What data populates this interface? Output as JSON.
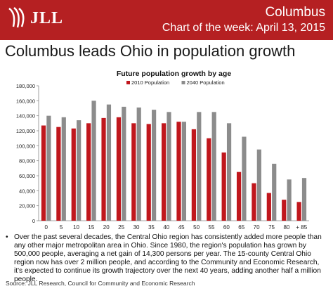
{
  "header": {
    "brand": "JLL",
    "city": "Columbus",
    "subtitle": "Chart of the week: April 13, 2015"
  },
  "headline": "Columbus leads Ohio in population growth",
  "chart_data": {
    "type": "bar",
    "title": "Future population growth by age",
    "categories": [
      "0",
      "5",
      "10",
      "15",
      "20",
      "25",
      "30",
      "35",
      "40",
      "45",
      "50",
      "55",
      "60",
      "65",
      "70",
      "75",
      "80",
      "+ 85"
    ],
    "series": [
      {
        "name": "2010 Population",
        "color": "#c0171d",
        "values": [
          127000,
          125000,
          123000,
          130000,
          137000,
          138000,
          130000,
          129000,
          130000,
          132000,
          122000,
          110000,
          91000,
          65000,
          50000,
          37000,
          28000,
          25000
        ]
      },
      {
        "name": "2040 Population",
        "color": "#8c8c8c",
        "values": [
          140000,
          138000,
          134000,
          160000,
          155000,
          152000,
          151000,
          148000,
          145000,
          132000,
          145000,
          145000,
          130000,
          112000,
          95000,
          76000,
          55000,
          57000
        ]
      }
    ],
    "ylim": [
      0,
      180000
    ],
    "yticks": [
      "0",
      "20,000",
      "40,000",
      "60,000",
      "80,000",
      "100,000",
      "120,000",
      "140,000",
      "160,000",
      "180,000"
    ],
    "legend_position": "top-center",
    "grid": false
  },
  "body_text": "Over the past several decades, the Central Ohio region has consistently added more people than any other major metropolitan area in Ohio. Since 1980, the region's population has grown by 500,000 people, averaging a net gain of 14,300 persons per year. The 15-county Central Ohio region now has over 2 million people, and according to the Community and Economic Research, it's expected to continue its growth trajectory over the next 40 years, adding another half a million people.",
  "bullet_symbol": "•",
  "source": "Source: JLL Research, Council for Community and Economic Research"
}
